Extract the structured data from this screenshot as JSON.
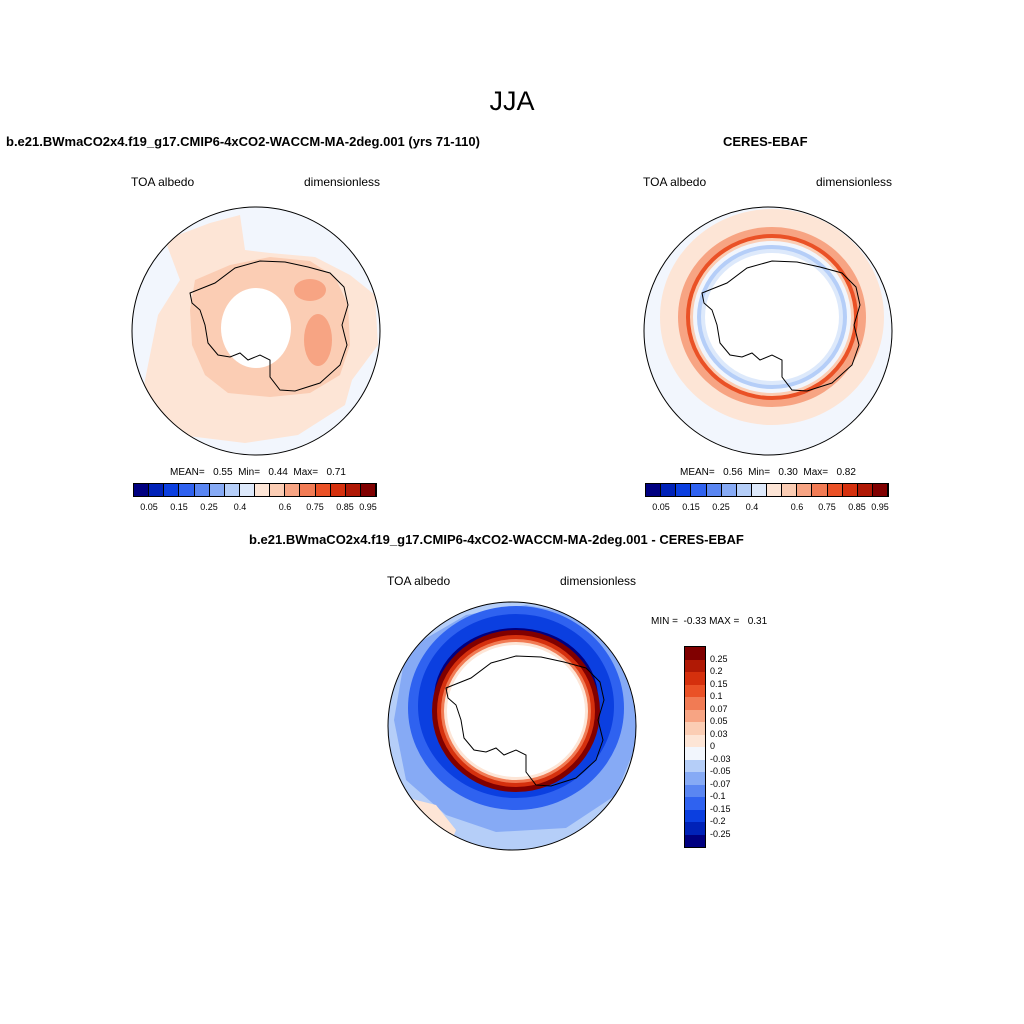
{
  "page": {
    "title": "JJA",
    "colors": {
      "seq": [
        "#000080",
        "#0022b8",
        "#0b3fe0",
        "#2f62f0",
        "#5a86f2",
        "#86aaf5",
        "#b5cef8",
        "#dde9fb",
        "#fde5d6",
        "#fbcdb4",
        "#f7a483",
        "#f17b54",
        "#ea5126",
        "#d5300d",
        "#b01905",
        "#800000"
      ],
      "div": [
        "#000080",
        "#0022b8",
        "#0b3fe0",
        "#2f62f0",
        "#5a86f2",
        "#86aaf5",
        "#b5cef8",
        "#f2f6fd",
        "#fde5d6",
        "#fbcdb4",
        "#f7a483",
        "#f17b54",
        "#ea5126",
        "#d5300d",
        "#b01905",
        "#800000"
      ]
    }
  },
  "chart_data": [
    {
      "type": "heatmap",
      "projection": "south-polar-stereographic",
      "title": "b.e21.BWmaCO2x4.f19_g17.CMIP6-4xCO2-WACCM-MA-2deg.001 (yrs 71-110)",
      "left_label": "TOA albedo",
      "right_label": "dimensionless",
      "stats_text": "MEAN=   0.55  Min=   0.44  Max=   0.71",
      "stats": {
        "mean": 0.55,
        "min": 0.44,
        "max": 0.71
      },
      "colorbar_levels": [
        "0.05",
        "0.15",
        "0.25",
        "0.4",
        "0.6",
        "0.75",
        "0.85",
        "0.95"
      ],
      "value_range": [
        0.44,
        0.71
      ]
    },
    {
      "type": "heatmap",
      "projection": "south-polar-stereographic",
      "title": "CERES-EBAF",
      "left_label": "TOA albedo",
      "right_label": "dimensionless",
      "stats_text": "MEAN=   0.56  Min=   0.30  Max=   0.82",
      "stats": {
        "mean": 0.56,
        "min": 0.3,
        "max": 0.82
      },
      "colorbar_levels": [
        "0.05",
        "0.15",
        "0.25",
        "0.4",
        "0.6",
        "0.75",
        "0.85",
        "0.95"
      ],
      "value_range": [
        0.3,
        0.82
      ]
    },
    {
      "type": "heatmap",
      "projection": "south-polar-stereographic",
      "title": "b.e21.BWmaCO2x4.f19_g17.CMIP6-4xCO2-WACCM-MA-2deg.001 - CERES-EBAF",
      "left_label": "TOA albedo",
      "right_label": "dimensionless",
      "stats_text": "MIN =  -0.33 MAX =   0.31",
      "stats": {
        "min": -0.33,
        "max": 0.31
      },
      "colorbar_levels": [
        "0.25",
        "0.2",
        "0.15",
        "0.1",
        "0.07",
        "0.05",
        "0.03",
        "0",
        "-0.03",
        "-0.05",
        "-0.07",
        "-0.1",
        "-0.15",
        "-0.2",
        "-0.25"
      ]
    }
  ]
}
